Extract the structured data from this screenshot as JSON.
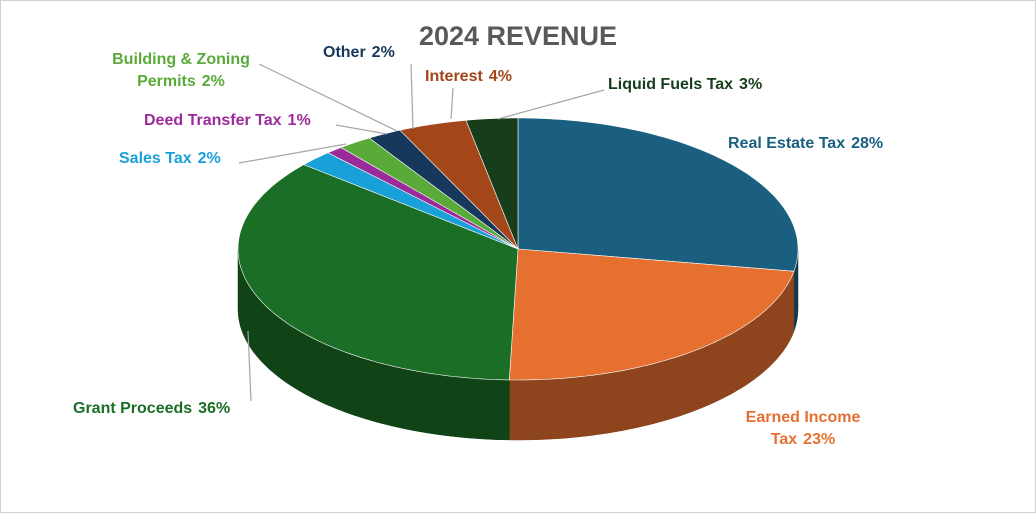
{
  "chart_data": {
    "type": "pie",
    "title": "2024 REVENUE",
    "categories": [
      "Real Estate Tax",
      "Earned Income Tax",
      "Grant Proceeds",
      "Sales Tax",
      "Deed Transfer Tax",
      "Building & Zoning Permits",
      "Other",
      "Interest",
      "Liquid Fuels Tax"
    ],
    "values": [
      28,
      23,
      36,
      2,
      1,
      2,
      2,
      4,
      3
    ],
    "value_labels": [
      "28%",
      "23%",
      "36%",
      "2%",
      "1%",
      "2%",
      "2%",
      "4%",
      "3%"
    ],
    "colors": [
      "#1a5f80",
      "#e57030",
      "#1a6e25",
      "#1aa0d8",
      "#9b2a9b",
      "#5aaa3a",
      "#16385a",
      "#a3461a",
      "#173d1a"
    ]
  }
}
